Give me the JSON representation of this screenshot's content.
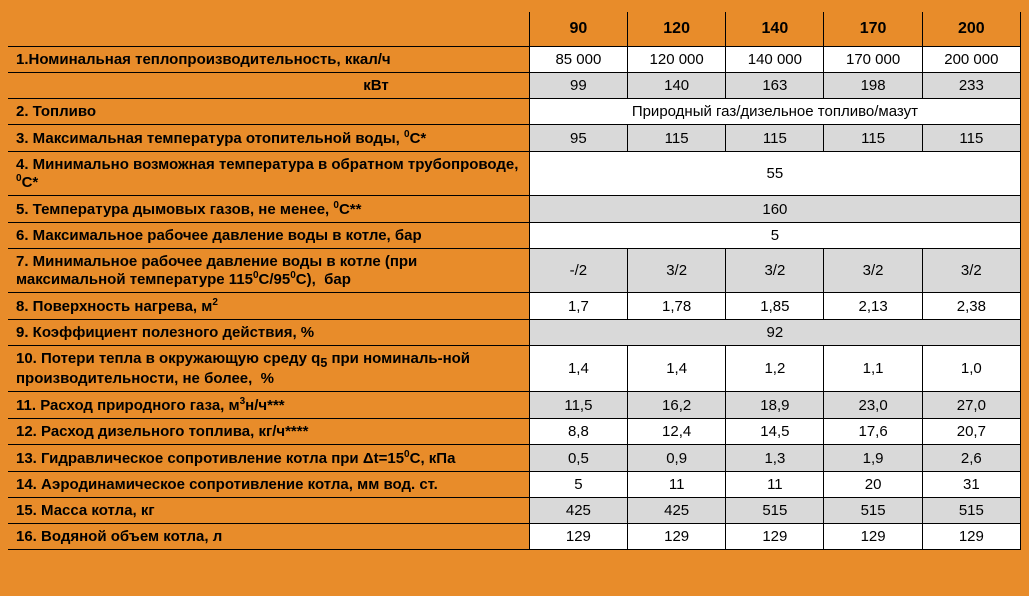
{
  "table": {
    "background_color": "#e88c2a",
    "grey": "#d9d9d9",
    "white": "#ffffff",
    "border_color": "#000000",
    "font_family": "Arial",
    "label_fontsize": 15,
    "header_fontsize": 16,
    "columns": [
      "90",
      "120",
      "140",
      "170",
      "200"
    ],
    "rows": [
      {
        "label_html": "1.Номинальная теплопроизводительность, ккал/ч",
        "vals": [
          "85 000",
          "120 000",
          "140 000",
          "170 000",
          "200 000"
        ],
        "bg": "white"
      },
      {
        "label_html": "кВт",
        "label_class": "kvt",
        "vals": [
          "99",
          "140",
          "163",
          "198",
          "233"
        ],
        "bg": "grey"
      },
      {
        "label_html": "2. Топливо",
        "span": "Природный газ/дизельное топливо/мазут",
        "bg": "white"
      },
      {
        "label_html": "3. Максимальная температура отопительной воды, <sup>0</sup>С*",
        "vals": [
          "95",
          "115",
          "115",
          "115",
          "115"
        ],
        "bg": "grey"
      },
      {
        "label_html": "4. Минимально возможная температура в обратном трубопроводе, <sup>0</sup>С*",
        "span": "55",
        "bg": "white"
      },
      {
        "label_html": "5. Температура дымовых газов, не менее, <sup>0</sup>С**",
        "span": "160",
        "bg": "grey"
      },
      {
        "label_html": "6. Максимальное рабочее давление воды в котле, бар",
        "span": "5",
        "bg": "white"
      },
      {
        "label_html": "7. Минимальное рабочее давление воды в котле (при максимальной температуре 115<sup>0</sup>С/95<sup>0</sup>С),&nbsp;&nbsp;бар",
        "vals": [
          "-/2",
          "3/2",
          "3/2",
          "3/2",
          "3/2"
        ],
        "bg": "grey"
      },
      {
        "label_html": "8. Поверхность нагрева, м<sup>2</sup>",
        "vals": [
          "1,7",
          "1,78",
          "1,85",
          "2,13",
          "2,38"
        ],
        "bg": "white"
      },
      {
        "label_html": "9. Коэффициент полезного действия, %",
        "span": "92",
        "bg": "grey"
      },
      {
        "label_html": "10. Потери тепла в окружающую среду q<sub>5</sub> при номиналь-ной производительности, не более,&nbsp;&nbsp;%",
        "vals": [
          "1,4",
          "1,4",
          "1,2",
          "1,1",
          "1,0"
        ],
        "bg": "white"
      },
      {
        "label_html": "11. Расход природного газа, м<sup>3</sup>н/ч***",
        "vals": [
          "11,5",
          "16,2",
          "18,9",
          "23,0",
          "27,0"
        ],
        "bg": "grey"
      },
      {
        "label_html": "12. Расход дизельного топлива, кг/ч****",
        "vals": [
          "8,8",
          "12,4",
          "14,5",
          "17,6",
          "20,7"
        ],
        "bg": "white"
      },
      {
        "label_html": "13. Гидравлическое сопротивление котла при Δt=15<sup>0</sup>С, кПа",
        "vals": [
          "0,5",
          "0,9",
          "1,3",
          "1,9",
          "2,6"
        ],
        "bg": "grey"
      },
      {
        "label_html": "14. Аэродинамическое сопротивление котла, мм вод. ст.",
        "vals": [
          "5",
          "11",
          "11",
          "20",
          "31"
        ],
        "bg": "white"
      },
      {
        "label_html": "15. Масса котла, кг",
        "vals": [
          "425",
          "425",
          "515",
          "515",
          "515"
        ],
        "bg": "grey"
      },
      {
        "label_html": "16. Водяной объем котла, л",
        "vals": [
          "129",
          "129",
          "129",
          "129",
          "129"
        ],
        "bg": "white"
      }
    ]
  }
}
